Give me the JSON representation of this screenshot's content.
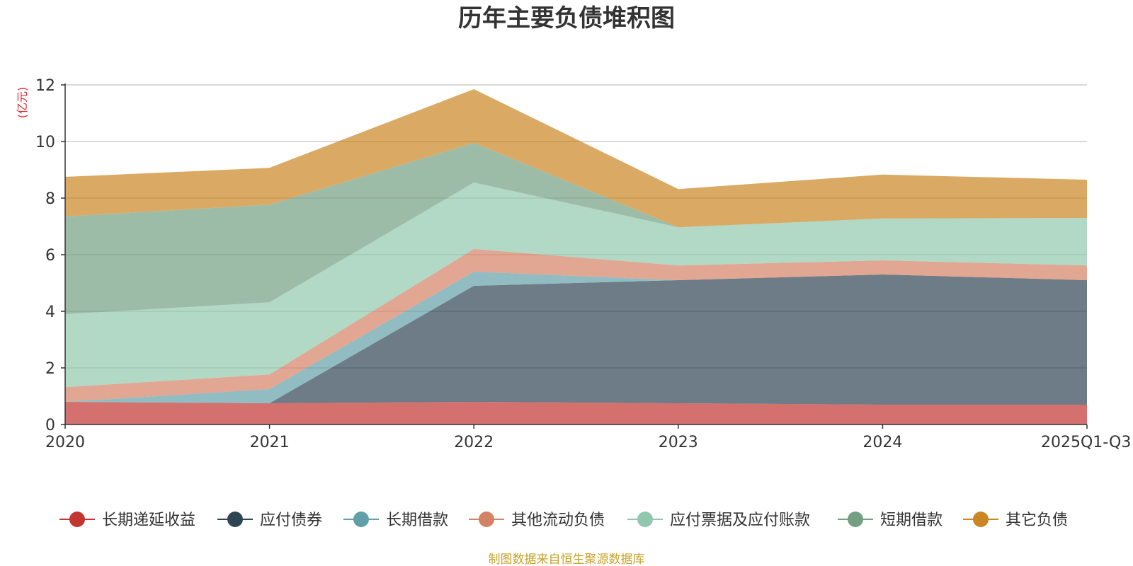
{
  "chart_data": {
    "type": "area",
    "stacked": true,
    "title": "历年主要负债堆积图",
    "unit_label": "(亿元)",
    "categories": [
      "2020",
      "2021",
      "2022",
      "2023",
      "2024",
      "2025Q1-Q3"
    ],
    "y_ticks": [
      "0",
      "2",
      "4",
      "6",
      "8",
      "10",
      "12"
    ],
    "ylim": [
      0,
      12
    ],
    "grid": true,
    "legend_position": "bottom",
    "series": [
      {
        "name": "长期递延收益",
        "color": "#c23531",
        "values": [
          0.8,
          0.75,
          0.8,
          0.75,
          0.7,
          0.7
        ]
      },
      {
        "name": "应付债券",
        "color": "#2f4554",
        "values": [
          0.0,
          0.0,
          4.1,
          4.35,
          4.6,
          4.4
        ]
      },
      {
        "name": "长期借款",
        "color": "#61a0a8",
        "values": [
          0.0,
          0.5,
          0.5,
          0.0,
          0.0,
          0.0
        ]
      },
      {
        "name": "其他流动负债",
        "color": "#d48265",
        "values": [
          0.52,
          0.52,
          0.8,
          0.52,
          0.5,
          0.52
        ]
      },
      {
        "name": "应付票据及应付账款",
        "color": "#91c7ae",
        "values": [
          2.58,
          2.55,
          2.35,
          1.35,
          1.48,
          1.68
        ]
      },
      {
        "name": "短期借款",
        "color": "#749f83",
        "values": [
          3.45,
          3.45,
          1.4,
          0.0,
          0.0,
          0.0
        ]
      },
      {
        "name": "其它负债",
        "color": "#ca8622",
        "values": [
          1.4,
          1.3,
          1.9,
          1.35,
          1.55,
          1.35
        ]
      }
    ]
  },
  "source_text": "制图数据来自恒生聚源数据库",
  "colors": {
    "source": "#c9a227",
    "axis": "#333333",
    "grid": "#cccccc"
  }
}
